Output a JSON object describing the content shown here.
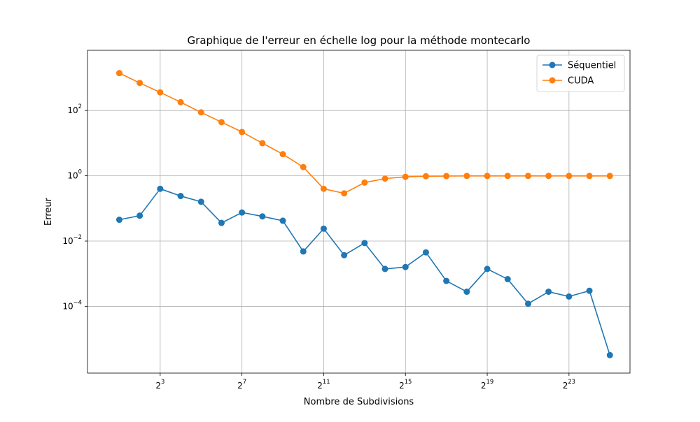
{
  "chart_data": {
    "type": "line",
    "title": "Graphique de l'erreur en échelle log pour la méthode montecarlo",
    "xlabel": "Nombre de Subdivisions",
    "ylabel": "Erreur",
    "x_scale": "log2",
    "y_scale": "log10",
    "x": [
      2,
      4,
      8,
      16,
      32,
      64,
      128,
      256,
      512,
      1024,
      2048,
      4096,
      8192,
      16384,
      32768,
      65536,
      131072,
      262144,
      524288,
      1048576,
      2097152,
      4194304,
      8388608,
      16777216,
      33554432
    ],
    "xlim": [
      0.68,
      66400000
    ],
    "ylim": [
      9e-07,
      7000
    ],
    "x_ticks": [
      {
        "value": 8,
        "base": "2",
        "exp": "3"
      },
      {
        "value": 128,
        "base": "2",
        "exp": "7"
      },
      {
        "value": 2048,
        "base": "2",
        "exp": "11"
      },
      {
        "value": 32768,
        "base": "2",
        "exp": "15"
      },
      {
        "value": 524288,
        "base": "2",
        "exp": "19"
      },
      {
        "value": 8388608,
        "base": "2",
        "exp": "23"
      }
    ],
    "y_ticks": [
      {
        "value": 0.0001,
        "base": "10",
        "exp": "−4"
      },
      {
        "value": 0.01,
        "base": "10",
        "exp": "−2"
      },
      {
        "value": 1,
        "base": "10",
        "exp": "0"
      },
      {
        "value": 100,
        "base": "10",
        "exp": "2"
      }
    ],
    "grid": true,
    "legend_position": "top-right",
    "series": [
      {
        "name": "Séquentiel",
        "color": "#1f77b4",
        "marker": "circle",
        "values": [
          0.045,
          0.06,
          0.4,
          0.24,
          0.16,
          0.036,
          0.075,
          0.057,
          0.042,
          0.0048,
          0.024,
          0.0037,
          0.0087,
          0.0014,
          0.0016,
          0.0045,
          0.0006,
          0.00028,
          0.0014,
          0.00068,
          0.00012,
          0.00028,
          0.0002,
          0.0003,
          3.2e-06
        ]
      },
      {
        "name": "CUDA",
        "color": "#ff7f0e",
        "marker": "circle",
        "values": [
          1400,
          700,
          360,
          180,
          88,
          44,
          22,
          10,
          4.6,
          1.85,
          0.4,
          0.29,
          0.62,
          0.82,
          0.93,
          0.97,
          0.98,
          0.99,
          0.99,
          0.99,
          0.99,
          0.99,
          0.99,
          0.99,
          0.99
        ]
      }
    ]
  }
}
